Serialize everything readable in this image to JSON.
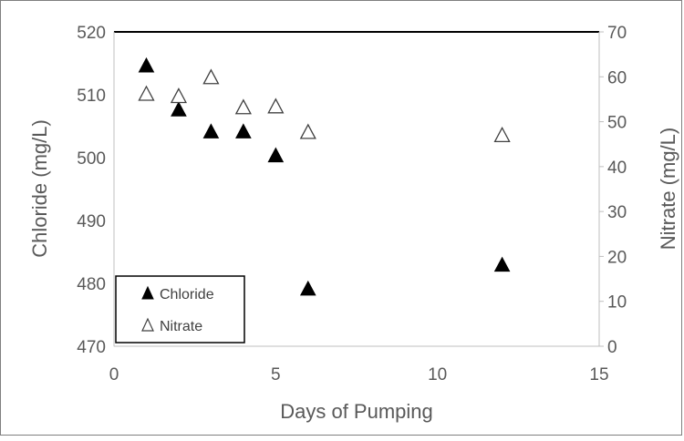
{
  "chart_data": {
    "type": "scatter",
    "xlabel": "Days of Pumping",
    "ylabel_left": "Chloride (mg/L)",
    "ylabel_right": "Nitrate (mg/L)",
    "xlim": [
      0,
      15
    ],
    "x_ticks": [
      0,
      5,
      10,
      15
    ],
    "ylim_left": [
      470,
      520
    ],
    "y_ticks_left": [
      470,
      480,
      490,
      500,
      510,
      520
    ],
    "ylim_right": [
      0,
      70
    ],
    "y_ticks_right": [
      0,
      10,
      20,
      30,
      40,
      50,
      60,
      70
    ],
    "grid": false,
    "legend_position": "bottom-left",
    "series": [
      {
        "name": "Chloride",
        "axis": "left",
        "marker": "filled-triangle",
        "color": "#000000",
        "points": [
          {
            "x": 1,
            "y": 514.5
          },
          {
            "x": 2,
            "y": 507.5
          },
          {
            "x": 3,
            "y": 504
          },
          {
            "x": 4,
            "y": 504
          },
          {
            "x": 5,
            "y": 500.2
          },
          {
            "x": 6,
            "y": 479
          },
          {
            "x": 12,
            "y": 482.8
          }
        ]
      },
      {
        "name": "Nitrate",
        "axis": "right",
        "marker": "open-triangle",
        "color": "#000000",
        "points": [
          {
            "x": 1,
            "y": 56
          },
          {
            "x": 2,
            "y": 55.5
          },
          {
            "x": 3,
            "y": 59.7
          },
          {
            "x": 4,
            "y": 53
          },
          {
            "x": 5,
            "y": 53.2
          },
          {
            "x": 6,
            "y": 47.5
          },
          {
            "x": 12,
            "y": 46.8
          }
        ]
      }
    ]
  }
}
